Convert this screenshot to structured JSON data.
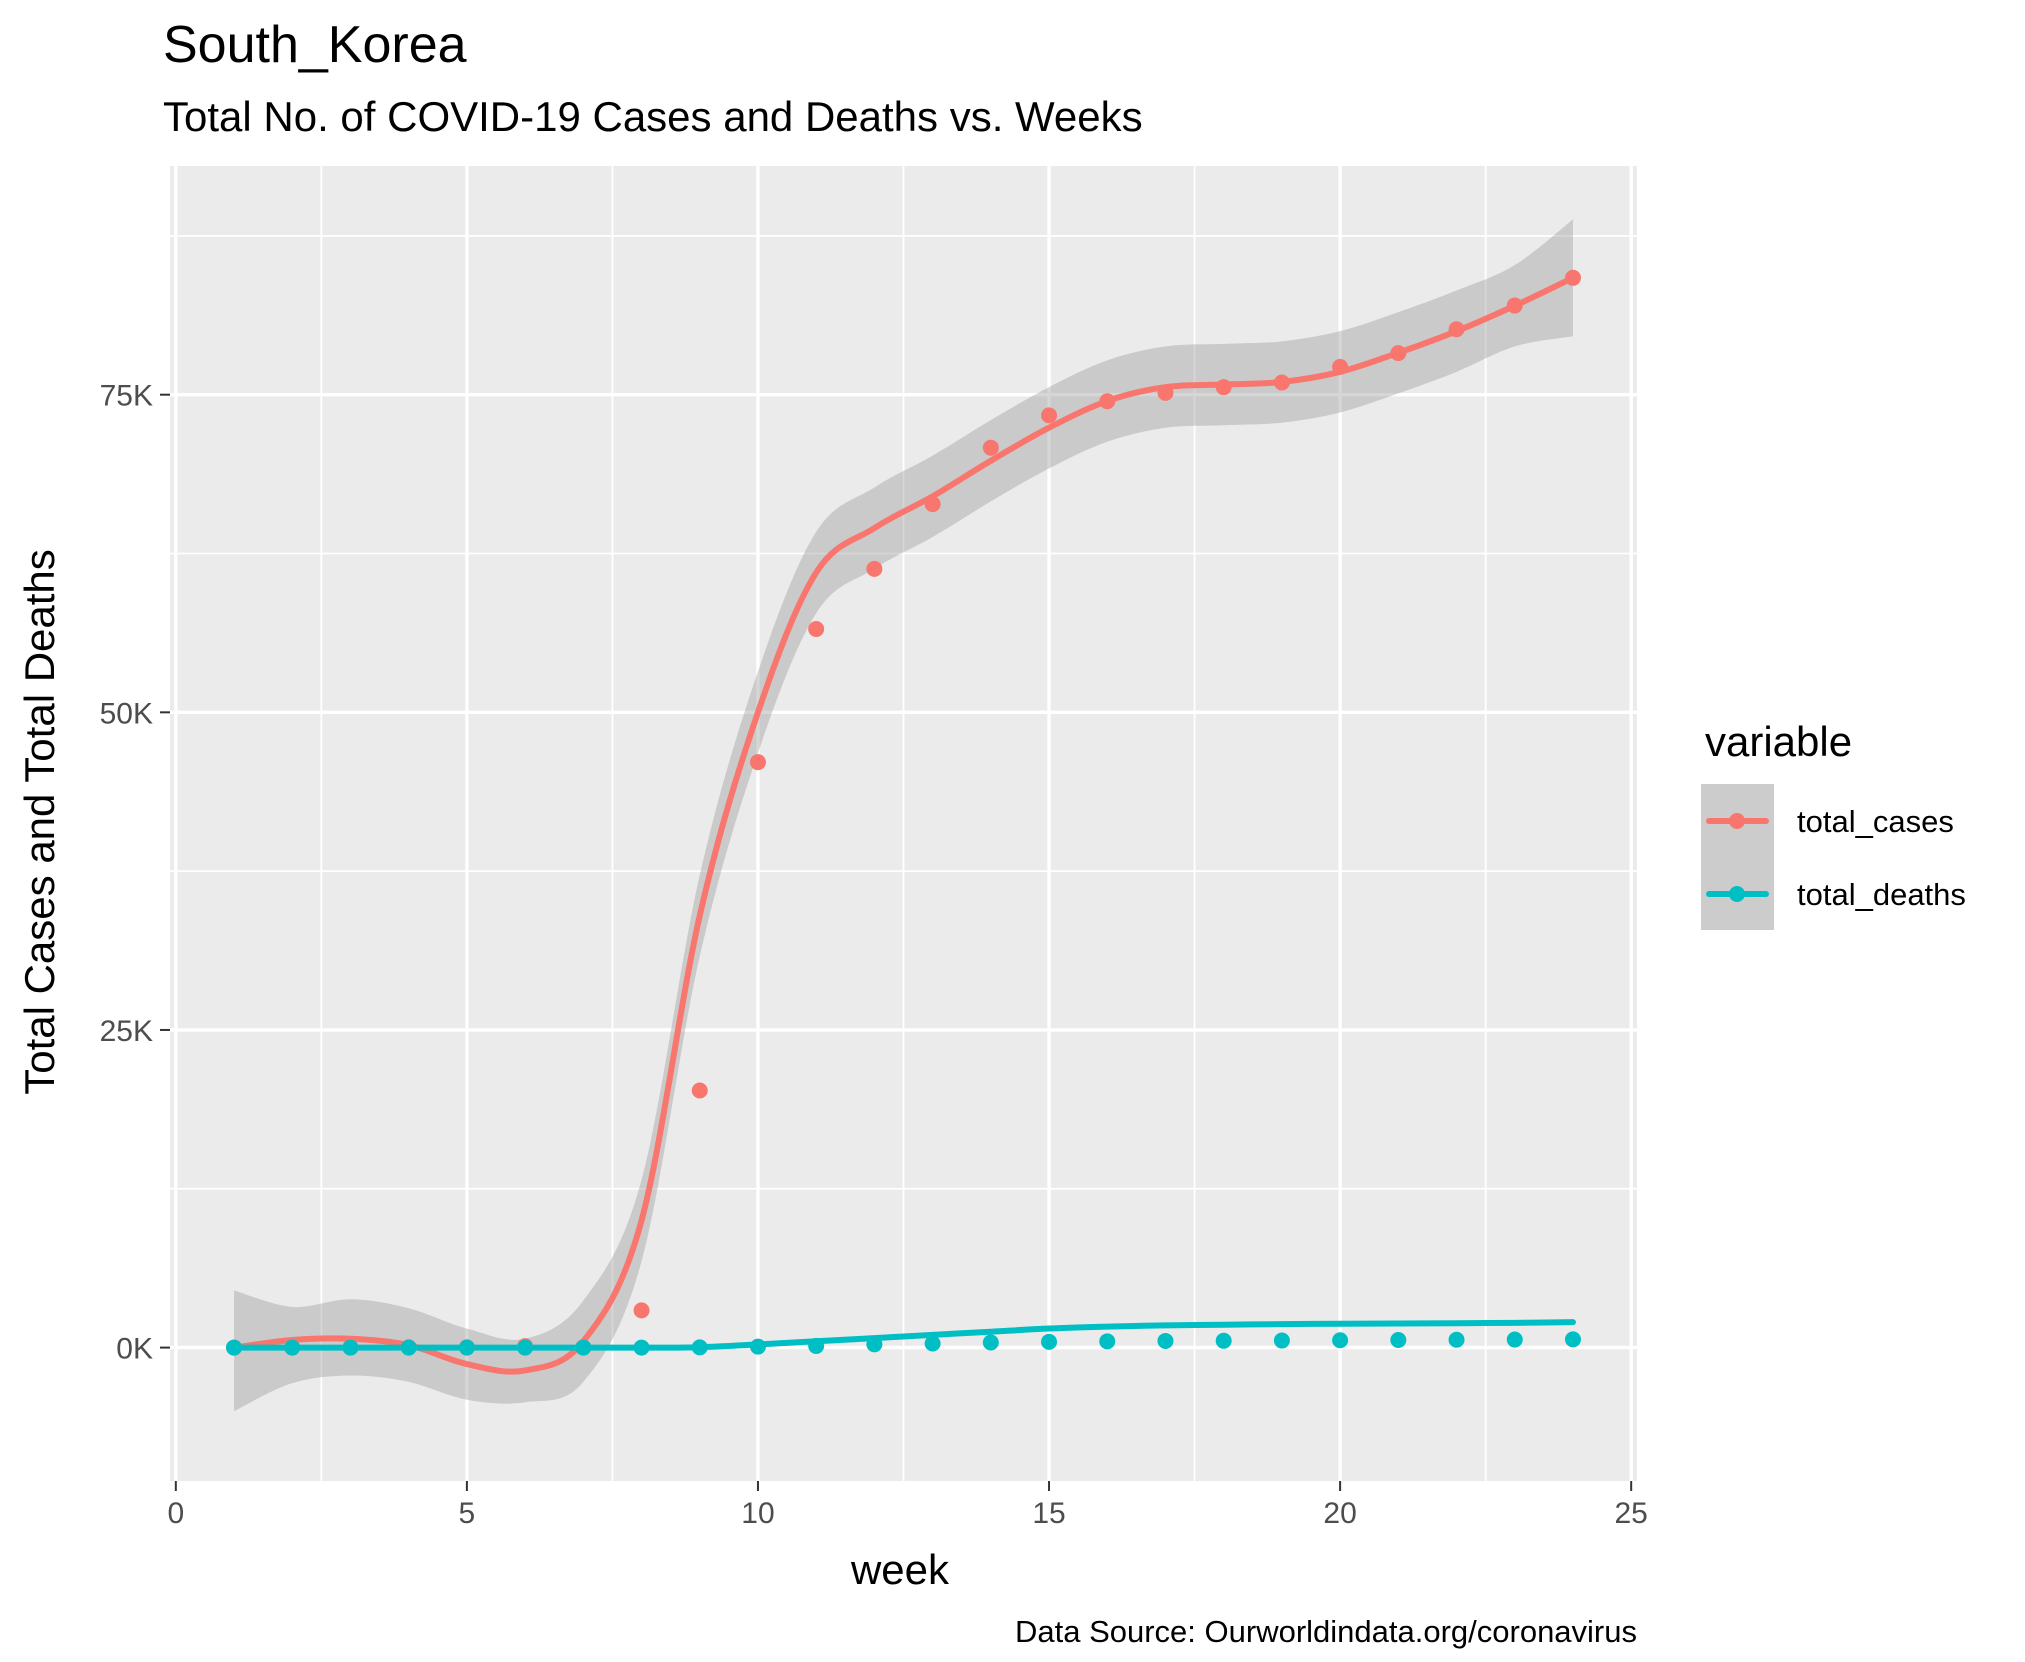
{
  "chart_data": {
    "type": "line",
    "title": "South_Korea",
    "subtitle": "Total No. of COVID-19 Cases and Deaths vs. Weeks",
    "xlabel": "week",
    "ylabel": "Total Cases and Total Deaths",
    "caption": "Data Source: Ourworldindata.org/coronavirus",
    "x_ticks": [
      0,
      5,
      10,
      15,
      20,
      25
    ],
    "x_tick_labels": [
      "0",
      "5",
      "10",
      "15",
      "20",
      "25"
    ],
    "y_ticks": [
      0,
      25000,
      50000,
      75000
    ],
    "y_tick_labels": [
      "0K",
      "25K",
      "50K",
      "75K"
    ],
    "xlim": [
      -0.1,
      25.1
    ],
    "ylim": [
      -10500,
      93000
    ],
    "grid": true,
    "legend": {
      "title": "variable",
      "position": "right",
      "entries": [
        "total_cases",
        "total_deaths"
      ]
    },
    "x": [
      1,
      2,
      3,
      4,
      5,
      6,
      7,
      8,
      9,
      10,
      11,
      12,
      13,
      14,
      15,
      16,
      17,
      18,
      19,
      20,
      21,
      22,
      23,
      24
    ],
    "series": [
      {
        "name": "total_cases",
        "color": "#F8766D",
        "values": [
          1,
          4,
          12,
          24,
          28,
          111,
          28,
          2931,
          20233,
          46076,
          56560,
          61294,
          66390,
          70827,
          73372,
          74483,
          75143,
          75592,
          75960,
          77190,
          78270,
          80151,
          82016,
          84200
        ],
        "smooth": [
          0,
          600,
          700,
          200,
          -1300,
          -1800,
          500,
          10000,
          34000,
          50000,
          61000,
          64500,
          67000,
          69800,
          72400,
          74500,
          75600,
          75800,
          76000,
          76800,
          78300,
          80000,
          82000,
          84200
        ],
        "ci_lower": [
          -5000,
          -2800,
          -2200,
          -2700,
          -4100,
          -4300,
          -2700,
          6800,
          30800,
          46800,
          57800,
          61300,
          63800,
          66600,
          69200,
          71300,
          72400,
          72600,
          72800,
          73600,
          75100,
          76800,
          78800,
          79600
        ],
        "ci_upper": [
          4500,
          3200,
          3800,
          3100,
          1500,
          700,
          3700,
          13200,
          37200,
          53200,
          64200,
          67700,
          70200,
          73000,
          75600,
          77700,
          78800,
          79000,
          79200,
          80000,
          81500,
          83200,
          85200,
          88800
        ]
      },
      {
        "name": "total_deaths",
        "color": "#00BFC4",
        "values": [
          0,
          0,
          0,
          0,
          0,
          0,
          0,
          0,
          16,
          77,
          131,
          260,
          320,
          403,
          455,
          492,
          522,
          536,
          555,
          578,
          598,
          618,
          633,
          647
        ],
        "smooth": [
          0,
          0,
          0,
          0,
          0,
          0,
          0,
          0,
          30,
          250,
          500,
          750,
          1000,
          1250,
          1500,
          1650,
          1750,
          1800,
          1850,
          1880,
          1900,
          1920,
          1950,
          2000
        ]
      }
    ]
  }
}
